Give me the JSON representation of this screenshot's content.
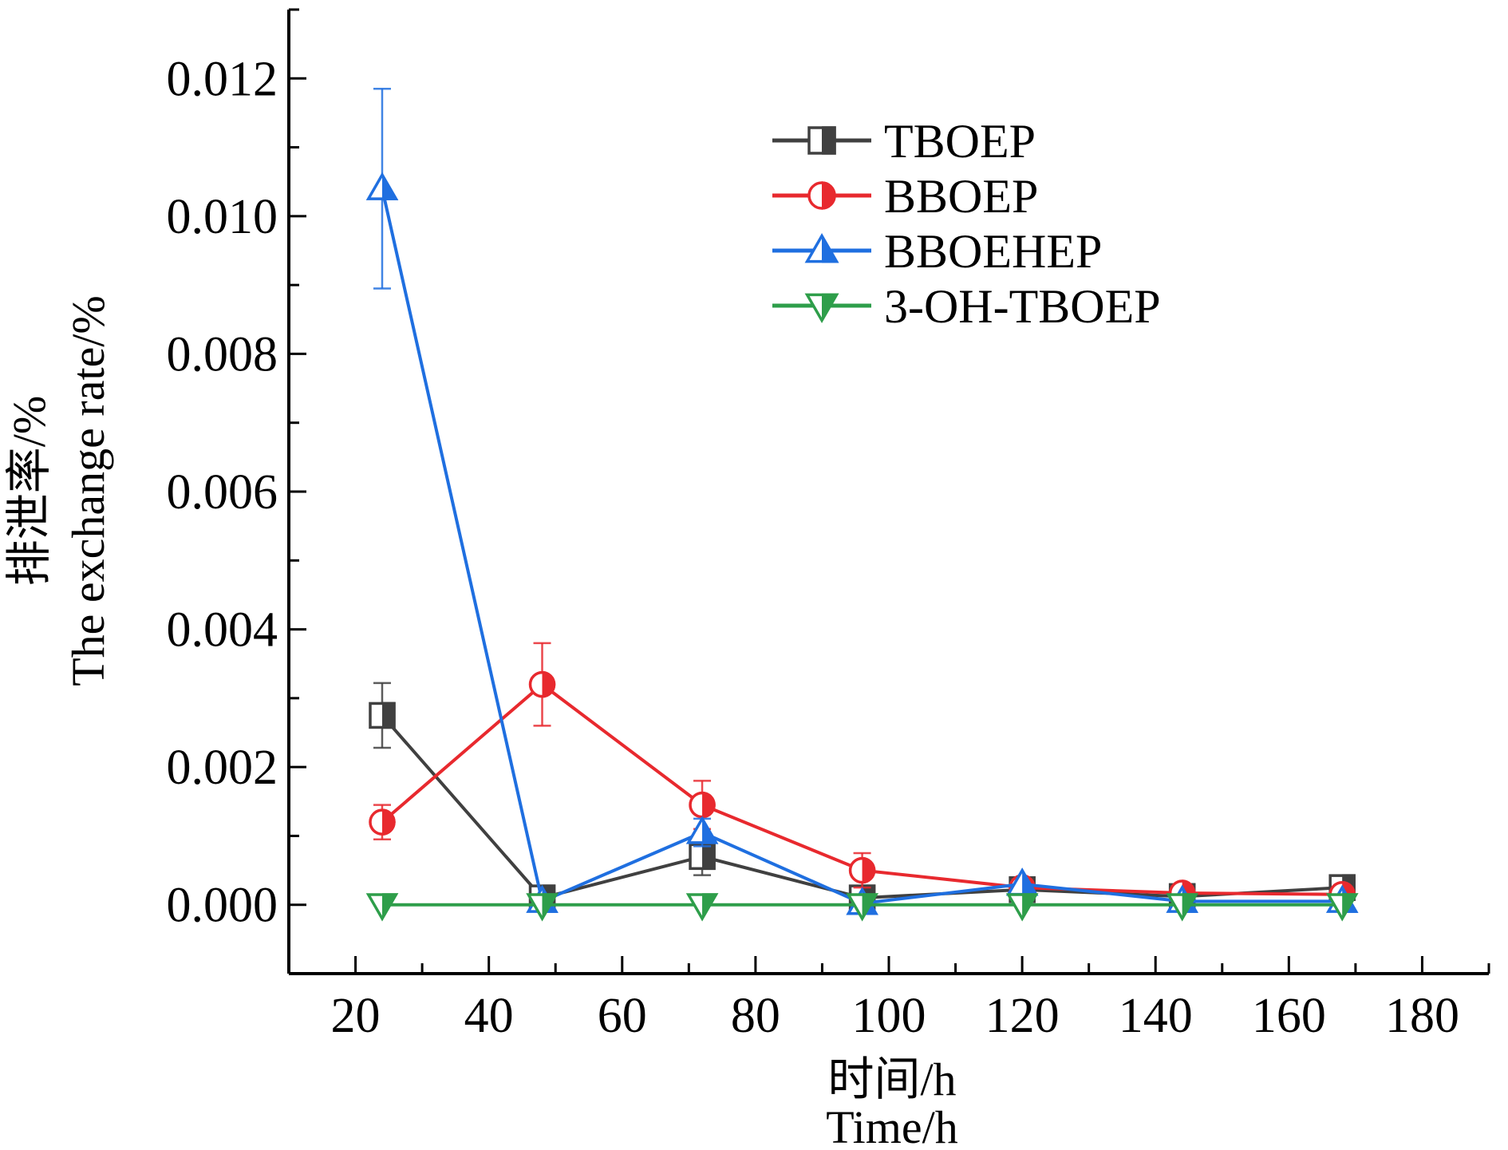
{
  "chart_data": {
    "type": "line",
    "title": "",
    "xlabel": [
      "时间/h",
      "Time/h"
    ],
    "ylabel": [
      "排泄率/%",
      "The exchange rate/%"
    ],
    "xlim": [
      10,
      190
    ],
    "ylim": [
      -0.001,
      0.013
    ],
    "xticks": [
      "20",
      "40",
      "60",
      "80",
      "100",
      "120",
      "140",
      "160",
      "180"
    ],
    "yticks": [
      "0.000",
      "0.002",
      "0.004",
      "0.006",
      "0.008",
      "0.010",
      "0.012"
    ],
    "x": [
      24,
      48,
      72,
      96,
      120,
      144,
      168
    ],
    "legend_position": "top-right",
    "grid": false,
    "series": [
      {
        "name": "TBOEP",
        "color": "#404040",
        "marker": "square",
        "values": [
          0.00275,
          0.0001,
          0.0007,
          0.0001,
          0.00022,
          0.00012,
          0.00025
        ],
        "errors": [
          0.00047,
          2e-05,
          0.00027,
          2e-05,
          5e-05,
          3e-05,
          5e-05
        ]
      },
      {
        "name": "BBOEP",
        "color": "#e8292e",
        "marker": "circle",
        "values": [
          0.0012,
          0.0032,
          0.00145,
          0.0005,
          0.00025,
          0.00017,
          0.00015
        ],
        "errors": [
          0.00025,
          0.0006,
          0.00035,
          0.00025,
          5e-05,
          5e-05,
          5e-05
        ]
      },
      {
        "name": "BBOEHEP",
        "color": "#1f6fe0",
        "marker": "triangle-up",
        "values": [
          0.0104,
          5e-05,
          0.00105,
          2e-05,
          0.0003,
          5e-05,
          5e-05
        ],
        "errors": [
          0.00145,
          2e-05,
          0.0002,
          2e-05,
          5e-05,
          2e-05,
          2e-05
        ]
      },
      {
        "name": "3-OH-TBOEP",
        "color": "#2e9e4a",
        "marker": "triangle-down",
        "values": [
          0.0,
          0.0,
          0.0,
          0.0,
          0.0,
          0.0,
          0.0
        ],
        "errors": [
          0,
          0,
          0,
          0,
          0,
          0,
          0
        ]
      }
    ]
  }
}
